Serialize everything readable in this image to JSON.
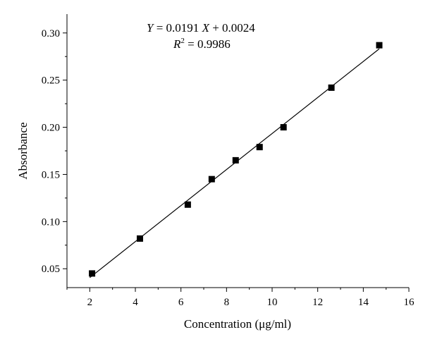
{
  "chart_data": {
    "type": "scatter",
    "title": "",
    "xlabel": "Concentration (μg/ml)",
    "ylabel": "Absorbance",
    "xlim": [
      1,
      16
    ],
    "ylim": [
      0.03,
      0.32
    ],
    "x_ticks": [
      2,
      4,
      6,
      8,
      10,
      12,
      14,
      16
    ],
    "x_tick_labels": [
      "2",
      "4",
      "6",
      "8",
      "10",
      "12",
      "14",
      "16"
    ],
    "y_ticks": [
      0.05,
      0.1,
      0.15,
      0.2,
      0.25,
      0.3
    ],
    "y_tick_labels": [
      "0.05",
      "0.10",
      "0.15",
      "0.20",
      "0.25",
      "0.30"
    ],
    "grid": false,
    "series": [
      {
        "marker": "square",
        "color": "#000000",
        "x": [
          2.1,
          4.2,
          6.3,
          7.35,
          8.4,
          9.45,
          10.5,
          12.6,
          14.7
        ],
        "y": [
          0.045,
          0.082,
          0.118,
          0.145,
          0.165,
          0.179,
          0.2,
          0.242,
          0.287
        ]
      }
    ],
    "fit_line": {
      "slope": 0.0191,
      "intercept": 0.0024,
      "x_range": [
        2.0,
        14.7
      ],
      "color": "#000000"
    },
    "annotations": {
      "equation": {
        "y_var": "Y",
        "middle": " = 0.0191 ",
        "x_var": "X",
        "tail": " + 0.0024"
      },
      "r2": {
        "r": "R",
        "sup": "2",
        "tail": " = 0.9986"
      }
    }
  }
}
